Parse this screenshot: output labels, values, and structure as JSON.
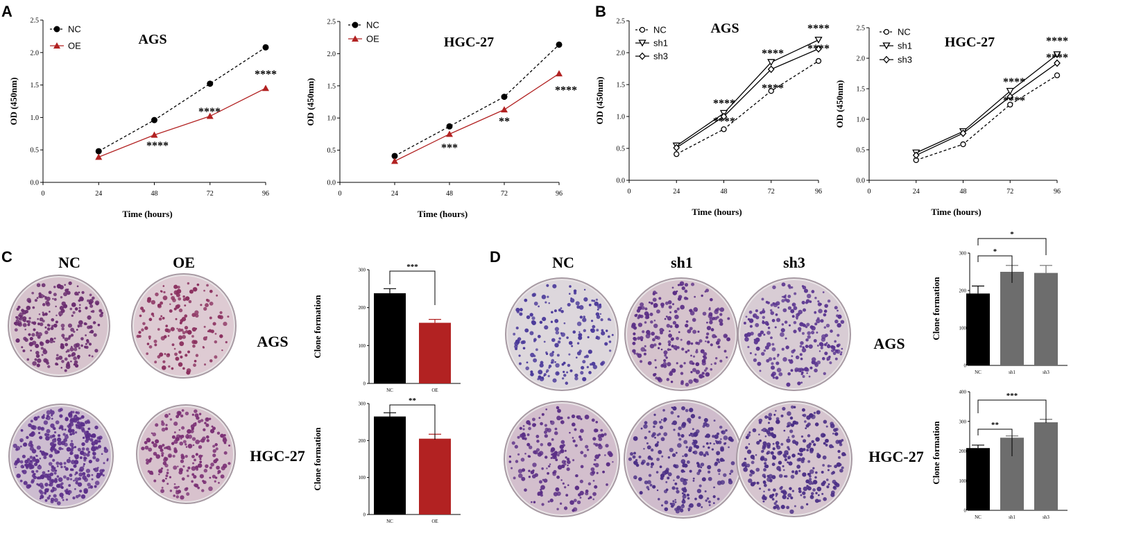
{
  "panel_labels": [
    "A",
    "B",
    "C",
    "D"
  ],
  "colors": {
    "nc": "#000000",
    "oe": "#b22222",
    "sh": "#6d6d6d",
    "dish": "#d6c2c8",
    "colony": "#5b2a86"
  },
  "chart_data": [
    {
      "type": "line",
      "panel": "A",
      "title": "AGS",
      "xlabel": "Time (hours)",
      "ylabel": "OD (450nm)",
      "x": [
        24,
        48,
        72,
        96
      ],
      "xlim": [
        0,
        96
      ],
      "ylim": [
        0,
        2.5
      ],
      "xticks": [
        "0",
        "24",
        "48",
        "72",
        "96"
      ],
      "yticks": [
        "0.0",
        "0.5",
        "1.0",
        "1.5",
        "2.0",
        "2.5"
      ],
      "series": [
        {
          "name": "NC",
          "values": [
            0.48,
            0.96,
            1.52,
            2.08
          ]
        },
        {
          "name": "OE",
          "values": [
            0.39,
            0.73,
            1.02,
            1.45
          ]
        }
      ],
      "annotations": [
        "****",
        "****",
        "****"
      ]
    },
    {
      "type": "line",
      "panel": "A",
      "title": "HGC-27",
      "xlabel": "Time (hours)",
      "ylabel": "OD (450nm)",
      "x": [
        24,
        48,
        72,
        96
      ],
      "xlim": [
        0,
        96
      ],
      "ylim": [
        0,
        2.5
      ],
      "xticks": [
        "0",
        "24",
        "48",
        "72",
        "96"
      ],
      "yticks": [
        "0.0",
        "0.5",
        "1.0",
        "1.5",
        "2.0",
        "2.5"
      ],
      "series": [
        {
          "name": "NC",
          "values": [
            0.41,
            0.87,
            1.33,
            2.14
          ]
        },
        {
          "name": "OE",
          "values": [
            0.33,
            0.75,
            1.13,
            1.69
          ]
        }
      ],
      "annotations": [
        "***",
        "**",
        "****"
      ]
    },
    {
      "type": "line",
      "panel": "B",
      "title": "AGS",
      "xlabel": "Time (hours)",
      "ylabel": "OD (450nm)",
      "x": [
        24,
        48,
        72,
        96
      ],
      "xlim": [
        0,
        96
      ],
      "ylim": [
        0,
        2.5
      ],
      "xticks": [
        "0",
        "24",
        "48",
        "72",
        "96"
      ],
      "yticks": [
        "0.0",
        "0.5",
        "1.0",
        "1.5",
        "2.0",
        "2.5"
      ],
      "series": [
        {
          "name": "NC",
          "values": [
            0.41,
            0.8,
            1.4,
            1.87
          ]
        },
        {
          "name": "sh1",
          "values": [
            0.54,
            1.05,
            1.85,
            2.2
          ]
        },
        {
          "name": "sh3",
          "values": [
            0.51,
            1.0,
            1.74,
            2.06
          ]
        }
      ],
      "annotations": [
        "****",
        "****",
        "****",
        "****",
        "****",
        "****"
      ]
    },
    {
      "type": "line",
      "panel": "B",
      "title": "HGC-27",
      "xlabel": "Time (hours)",
      "ylabel": "OD (450nm)",
      "x": [
        24,
        48,
        72,
        96
      ],
      "xlim": [
        0,
        96
      ],
      "ylim": [
        0,
        2.5
      ],
      "xticks": [
        "0",
        "24",
        "48",
        "72",
        "96"
      ],
      "yticks": [
        "0.0",
        "0.5",
        "1.0",
        "1.5",
        "2.0",
        "2.5"
      ],
      "series": [
        {
          "name": "NC",
          "values": [
            0.33,
            0.59,
            1.24,
            1.72
          ]
        },
        {
          "name": "sh1",
          "values": [
            0.45,
            0.8,
            1.46,
            2.06
          ]
        },
        {
          "name": "sh3",
          "values": [
            0.41,
            0.77,
            1.37,
            1.92
          ]
        }
      ],
      "annotations": [
        "****",
        "****",
        "****",
        "****"
      ]
    },
    {
      "type": "bar",
      "panel": "C",
      "cell_line": "AGS",
      "ylabel": "Clone formation",
      "categories": [
        "NC",
        "OE"
      ],
      "values": [
        238,
        160
      ],
      "errors": [
        12,
        9
      ],
      "ylim": [
        0,
        300
      ],
      "yticks": [
        "0",
        "100",
        "200",
        "300"
      ],
      "significance": [
        {
          "from": "NC",
          "to": "OE",
          "label": "***"
        }
      ]
    },
    {
      "type": "bar",
      "panel": "C",
      "cell_line": "HGC-27",
      "ylabel": "Clone formation",
      "categories": [
        "NC",
        "OE"
      ],
      "values": [
        265,
        205
      ],
      "errors": [
        10,
        12
      ],
      "ylim": [
        0,
        300
      ],
      "yticks": [
        "0",
        "100",
        "200",
        "300"
      ],
      "significance": [
        {
          "from": "NC",
          "to": "OE",
          "label": "**"
        }
      ]
    },
    {
      "type": "bar",
      "panel": "D",
      "cell_line": "AGS",
      "ylabel": "Clone formation",
      "categories": [
        "NC",
        "sh1",
        "sh3"
      ],
      "values": [
        192,
        250,
        247
      ],
      "errors": [
        20,
        17,
        20
      ],
      "ylim": [
        0,
        300
      ],
      "yticks": [
        "0",
        "100",
        "200",
        "300"
      ],
      "significance": [
        {
          "from": "NC",
          "to": "sh1",
          "label": "*"
        },
        {
          "from": "NC",
          "to": "sh3",
          "label": "*"
        }
      ]
    },
    {
      "type": "bar",
      "panel": "D",
      "cell_line": "HGC-27",
      "ylabel": "Clone formation",
      "categories": [
        "NC",
        "sh1",
        "sh3"
      ],
      "values": [
        210,
        245,
        297
      ],
      "errors": [
        10,
        6,
        10
      ],
      "ylim": [
        0,
        400
      ],
      "yticks": [
        "0",
        "100",
        "200",
        "300",
        "400"
      ],
      "significance": [
        {
          "from": "NC",
          "to": "sh1",
          "label": "**"
        },
        {
          "from": "NC",
          "to": "sh3",
          "label": "***"
        }
      ]
    }
  ],
  "photo_labels": {
    "c_columns": [
      "NC",
      "OE"
    ],
    "d_columns": [
      "NC",
      "sh1",
      "sh3"
    ],
    "rows": [
      "AGS",
      "HGC-27"
    ]
  }
}
